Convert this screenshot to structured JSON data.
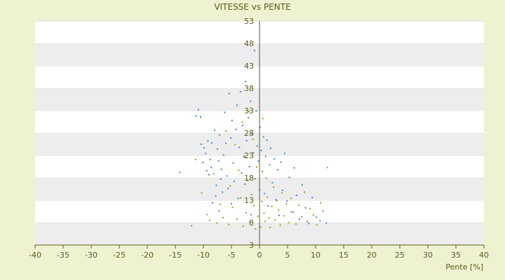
{
  "chart_data": {
    "type": "scatter",
    "title": "VITESSE vs PENTE",
    "xlabel": "Pente [%]",
    "ylabel": "",
    "xlim": [
      -40,
      40
    ],
    "ylim": [
      3,
      53
    ],
    "x_ticks": [
      -40,
      -35,
      -30,
      -25,
      -20,
      -15,
      -10,
      -5,
      0,
      5,
      10,
      15,
      20,
      25,
      30,
      35,
      40
    ],
    "y_ticks": [
      3,
      8,
      13,
      18,
      23,
      28,
      33,
      38,
      43,
      48,
      53
    ],
    "grid": true,
    "legend": "none",
    "colors": {
      "page_background": "#eff2d0",
      "band_light": "#ffffff",
      "band_dark": "#ededed",
      "axis": "#5c5a1e",
      "text": "#5c5a1e",
      "series_1": "#3f86d0",
      "series_2": "#a39b2a"
    },
    "series": [
      {
        "points_blue": [
          [
            -14.2,
            19.2
          ],
          [
            -11.3,
            31.8
          ],
          [
            -10.9,
            33.2
          ],
          [
            -10.5,
            31.6
          ],
          [
            -10.4,
            25.5
          ],
          [
            -10.1,
            21.4
          ],
          [
            -9.9,
            24.7
          ],
          [
            -9.6,
            23.4
          ],
          [
            -9.4,
            19.6
          ],
          [
            -9.2,
            26.2
          ],
          [
            -9.0,
            18.7
          ],
          [
            -8.8,
            22.1
          ],
          [
            -8.6,
            20.3
          ],
          [
            -8.5,
            25.8
          ],
          [
            -8.4,
            12.4
          ],
          [
            -8.0,
            28.6
          ],
          [
            -7.8,
            13.9
          ],
          [
            -7.7,
            16.3
          ],
          [
            -7.5,
            24.4
          ],
          [
            -7.3,
            21.8
          ],
          [
            -7.2,
            10.6
          ],
          [
            -7.1,
            27.5
          ],
          [
            -6.9,
            17.7
          ],
          [
            -6.8,
            19.9
          ],
          [
            -6.6,
            14.8
          ],
          [
            -6.4,
            23.1
          ],
          [
            -6.2,
            32.6
          ],
          [
            -6.0,
            25.7
          ],
          [
            -5.8,
            18.4
          ],
          [
            -5.6,
            15.6
          ],
          [
            -5.4,
            36.8
          ],
          [
            -5.1,
            26.9
          ],
          [
            -5.0,
            12.2
          ],
          [
            -4.9,
            30.8
          ],
          [
            -4.7,
            21.3
          ],
          [
            -4.5,
            17.2
          ],
          [
            -4.2,
            28.8
          ],
          [
            -4.0,
            34.2
          ],
          [
            -3.8,
            13.4
          ],
          [
            -3.6,
            24.8
          ],
          [
            -3.4,
            37.2
          ],
          [
            -3.2,
            19.1
          ],
          [
            -3.0,
            29.7
          ],
          [
            -2.8,
            22.6
          ],
          [
            -2.6,
            16.6
          ],
          [
            -2.5,
            39.5
          ],
          [
            -2.3,
            26.3
          ],
          [
            -2.0,
            31.4
          ],
          [
            -1.8,
            20.5
          ],
          [
            -1.6,
            35.1
          ],
          [
            -1.5,
            9.8
          ],
          [
            -1.3,
            27.8
          ],
          [
            -1.1,
            23.6
          ],
          [
            -0.9,
            46.4
          ],
          [
            -0.8,
            17.8
          ],
          [
            -0.6,
            32.9
          ],
          [
            -0.4,
            25.1
          ],
          [
            -0.2,
            21.7
          ],
          [
            0.1,
            29.3
          ],
          [
            0.3,
            24.1
          ],
          [
            0.5,
            19.4
          ],
          [
            0.7,
            27.1
          ],
          [
            0.9,
            14.5
          ],
          [
            1.1,
            22.8
          ],
          [
            1.3,
            26.4
          ],
          [
            1.5,
            11.7
          ],
          [
            1.8,
            20.9
          ],
          [
            2.0,
            24.6
          ],
          [
            2.3,
            16.9
          ],
          [
            2.6,
            22.2
          ],
          [
            2.9,
            13.1
          ],
          [
            3.2,
            19.8
          ],
          [
            3.5,
            9.6
          ],
          [
            3.8,
            21.5
          ],
          [
            4.1,
            15.2
          ],
          [
            4.5,
            23.4
          ],
          [
            4.9,
            12.8
          ],
          [
            5.3,
            18.1
          ],
          [
            5.7,
            10.4
          ],
          [
            6.2,
            20.2
          ],
          [
            6.6,
            14.1
          ],
          [
            7.1,
            8.8
          ],
          [
            7.6,
            16.4
          ],
          [
            8.2,
            11.3
          ],
          [
            8.8,
            7.8
          ],
          [
            9.4,
            13.6
          ],
          [
            10.1,
            9.2
          ],
          [
            10.8,
            8.4
          ],
          [
            11.3,
            10.6
          ],
          [
            11.9,
            7.9
          ]
        ],
        "name": ""
      },
      {
        "points_olive": [
          [
            -12.1,
            7.3
          ],
          [
            -11.4,
            22.1
          ],
          [
            -10.3,
            14.6
          ],
          [
            -9.3,
            9.8
          ],
          [
            -8.9,
            8.5
          ],
          [
            -8.2,
            18.9
          ],
          [
            -7.6,
            7.9
          ],
          [
            -7.0,
            12.1
          ],
          [
            -6.5,
            9.1
          ],
          [
            -6.0,
            28.4
          ],
          [
            -5.5,
            7.6
          ],
          [
            -5.2,
            16.2
          ],
          [
            -4.8,
            11.4
          ],
          [
            -4.4,
            25.4
          ],
          [
            -4.0,
            8.8
          ],
          [
            -3.7,
            19.7
          ],
          [
            -3.4,
            13.5
          ],
          [
            -3.1,
            30.4
          ],
          [
            -2.9,
            7.2
          ],
          [
            -2.7,
            22.9
          ],
          [
            -2.4,
            10.2
          ],
          [
            -2.1,
            17.4
          ],
          [
            -1.9,
            32.8
          ],
          [
            -1.7,
            8.1
          ],
          [
            -1.4,
            14.2
          ],
          [
            -1.2,
            26.6
          ],
          [
            -1.0,
            11.8
          ],
          [
            -0.7,
            6.6
          ],
          [
            -0.5,
            20.4
          ],
          [
            -0.3,
            9.4
          ],
          [
            0.0,
            15.3
          ],
          [
            0.2,
            7.0
          ],
          [
            0.4,
            12.7
          ],
          [
            0.6,
            31.2
          ],
          [
            0.8,
            10.1
          ],
          [
            1.0,
            8.3
          ],
          [
            1.2,
            17.9
          ],
          [
            1.4,
            13.7
          ],
          [
            1.7,
            9.0
          ],
          [
            1.9,
            6.9
          ],
          [
            2.2,
            11.6
          ],
          [
            2.5,
            15.9
          ],
          [
            2.8,
            8.6
          ],
          [
            3.1,
            12.9
          ],
          [
            3.4,
            10.8
          ],
          [
            3.7,
            7.4
          ],
          [
            4.0,
            14.6
          ],
          [
            4.4,
            9.5
          ],
          [
            4.8,
            12.2
          ],
          [
            5.2,
            8.0
          ],
          [
            5.6,
            13.4
          ],
          [
            6.0,
            10.3
          ],
          [
            6.5,
            7.7
          ],
          [
            7.0,
            11.9
          ],
          [
            7.5,
            9.3
          ],
          [
            8.0,
            14.8
          ],
          [
            8.5,
            8.2
          ],
          [
            9.0,
            11.1
          ],
          [
            9.6,
            9.7
          ],
          [
            10.2,
            7.5
          ],
          [
            10.9,
            12.4
          ],
          [
            12.1,
            20.3
          ]
        ],
        "name": ""
      }
    ],
    "cluster_note": ""
  }
}
